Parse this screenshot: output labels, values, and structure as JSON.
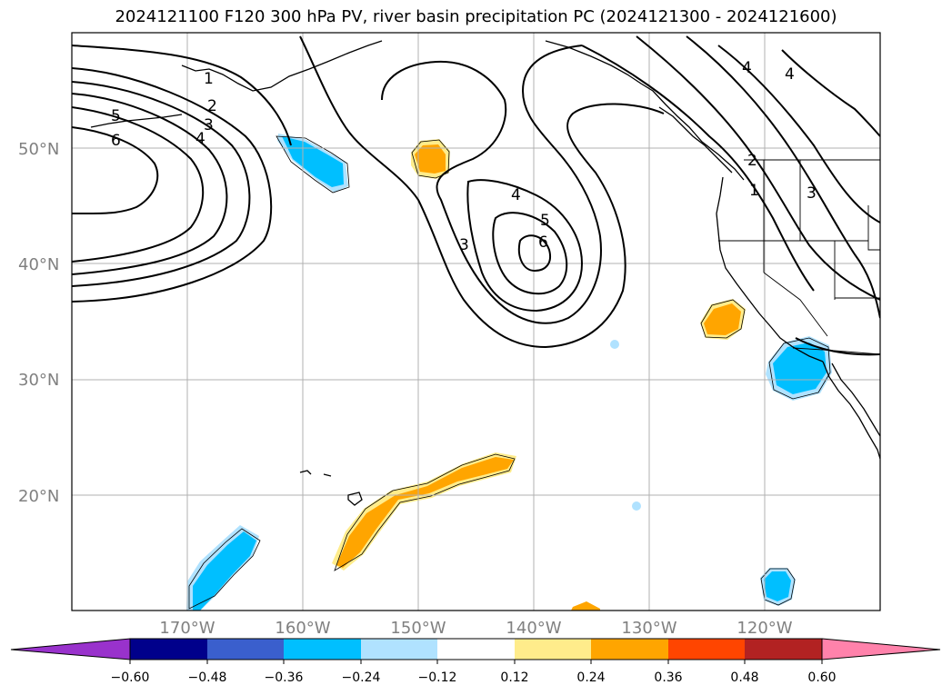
{
  "title": "2024121100 F120 300 hPa PV, river basin precipitation PC (2024121300 - 2024121600)",
  "map": {
    "lat_labels": [
      {
        "text": "50°N",
        "lat": 50
      },
      {
        "text": "40°N",
        "lat": 40
      },
      {
        "text": "30°N",
        "lat": 30
      },
      {
        "text": "20°N",
        "lat": 20
      }
    ],
    "lon_labels": [
      {
        "text": "170°W",
        "lon": -170
      },
      {
        "text": "160°W",
        "lon": -160
      },
      {
        "text": "150°W",
        "lon": -150
      },
      {
        "text": "140°W",
        "lon": -140
      },
      {
        "text": "130°W",
        "lon": -130
      },
      {
        "text": "120°W",
        "lon": -120
      }
    ],
    "pv_contour_labels": [
      "1",
      "2",
      "3",
      "4",
      "5",
      "6"
    ],
    "colorbar": {
      "ticks": [
        "−0.60",
        "−0.48",
        "−0.36",
        "−0.24",
        "−0.12",
        "0.12",
        "0.24",
        "0.36",
        "0.48",
        "0.60"
      ],
      "colors": [
        "#9932cc",
        "#00008b",
        "#3a5fcd",
        "#00bfff",
        "#b0e2ff",
        "#ffffff",
        "#ffec8b",
        "#ffa500",
        "#ff4500",
        "#b22222",
        "#ff82ab"
      ]
    }
  }
}
